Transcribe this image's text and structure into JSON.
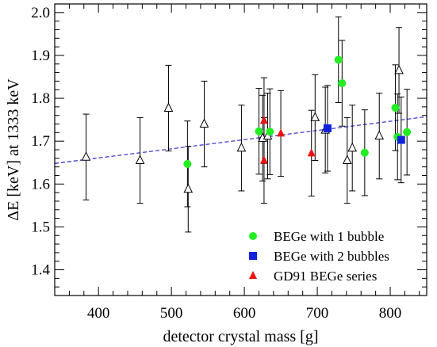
{
  "chart_data": {
    "type": "scatter",
    "title": "",
    "xlabel": "detector crystal mass [g]",
    "ylabel": "ΔE [keV] at 1333 keV",
    "xlim": [
      340,
      850
    ],
    "ylim": [
      1.34,
      2.02
    ],
    "xticks": [
      400,
      500,
      600,
      700,
      800
    ],
    "yticks": [
      1.4,
      1.5,
      1.6,
      1.7,
      1.8,
      1.9,
      2.0
    ],
    "xtick_labels": [
      "400",
      "500",
      "600",
      "700",
      "800"
    ],
    "ytick_labels": [
      "1.4",
      "1.5",
      "1.6",
      "1.7",
      "1.8",
      "1.9",
      "2.0"
    ],
    "grid": false,
    "legend_position": "bottom-right",
    "fit_line": {
      "x": [
        340,
        850
      ],
      "y": [
        1.648,
        1.757
      ],
      "color": "#3b3bcf",
      "style": "dashed"
    },
    "series": [
      {
        "name": "",
        "marker": "open-triangle",
        "color": "#000000",
        "points": [
          {
            "x": 383,
            "y": 1.663,
            "err": 0.1
          },
          {
            "x": 457,
            "y": 1.655,
            "err": 0.1
          },
          {
            "x": 496,
            "y": 1.777,
            "err": 0.1
          },
          {
            "x": 523,
            "y": 1.588,
            "err": 0.1
          },
          {
            "x": 545,
            "y": 1.74,
            "err": 0.1
          },
          {
            "x": 596,
            "y": 1.684,
            "err": 0.1
          },
          {
            "x": 625,
            "y": 1.707,
            "err": 0.1
          },
          {
            "x": 632,
            "y": 1.712,
            "err": 0.1
          },
          {
            "x": 697,
            "y": 1.755,
            "err": 0.1
          },
          {
            "x": 711,
            "y": 1.726,
            "err": 0.1
          },
          {
            "x": 741,
            "y": 1.655,
            "err": 0.1
          },
          {
            "x": 748,
            "y": 1.684,
            "err": 0.1
          },
          {
            "x": 785,
            "y": 1.712,
            "err": 0.1
          },
          {
            "x": 812,
            "y": 1.865,
            "err": 0.1
          }
        ]
      },
      {
        "name": "BEGe with 1 bubble",
        "marker": "circle",
        "color": "#22ee22",
        "points": [
          {
            "x": 522,
            "y": 1.647,
            "err": 0.1
          },
          {
            "x": 620,
            "y": 1.723,
            "err": 0.1
          },
          {
            "x": 635,
            "y": 1.722,
            "err": 0.1
          },
          {
            "x": 729,
            "y": 1.89,
            "err": 0.1
          },
          {
            "x": 734,
            "y": 1.835,
            "err": 0.1
          },
          {
            "x": 765,
            "y": 1.673,
            "err": 0.1
          },
          {
            "x": 807,
            "y": 1.778,
            "err": 0.1
          },
          {
            "x": 810,
            "y": 1.71,
            "err": 0.1
          },
          {
            "x": 823,
            "y": 1.721,
            "err": 0.1
          }
        ]
      },
      {
        "name": "BEGe with 2 bubbles",
        "marker": "square",
        "color": "#1122dd",
        "points": [
          {
            "x": 714,
            "y": 1.73,
            "err": 0.1
          },
          {
            "x": 815,
            "y": 1.703,
            "err": 0.1
          }
        ]
      },
      {
        "name": "GD91 BEGe series",
        "marker": "triangle",
        "color": "#ee1111",
        "points": [
          {
            "x": 627,
            "y": 1.748,
            "err": 0.1
          },
          {
            "x": 627,
            "y": 1.655,
            "err": 0.1
          },
          {
            "x": 650,
            "y": 1.718,
            "err": 0.1
          },
          {
            "x": 692,
            "y": 1.672,
            "err": 0.1
          }
        ]
      }
    ]
  }
}
